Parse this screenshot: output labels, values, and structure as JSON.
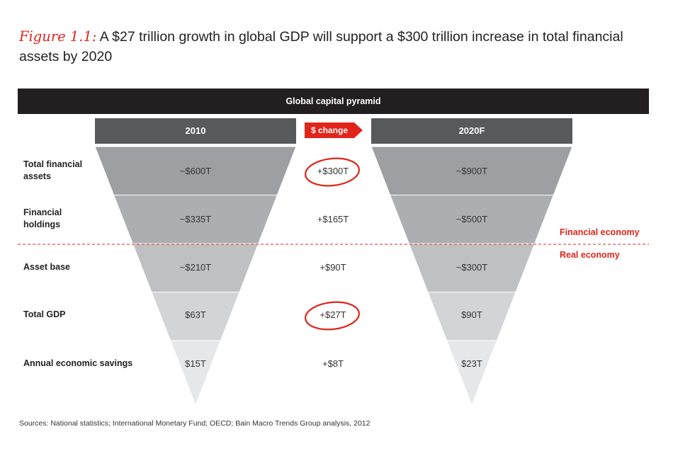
{
  "title": {
    "figure_label": "Figure 1.1:",
    "text": "A $27 trillion growth in global GDP will support a $300 trillion increase in total financial assets by 2020"
  },
  "header_bar": "Global capital pyramid",
  "columns": {
    "left": "2010",
    "middle": "$ change",
    "right": "2020F"
  },
  "rows": [
    {
      "label": "Total financial assets",
      "v2010": "~$600T",
      "change": "+$300T",
      "v2020": "~$900T",
      "circled": true
    },
    {
      "label": "Financial holdings",
      "v2010": "~$335T",
      "change": "+$165T",
      "v2020": "~$500T",
      "circled": false
    },
    {
      "label": "Asset base",
      "v2010": "~$210T",
      "change": "+$90T",
      "v2020": "~$300T",
      "circled": false
    },
    {
      "label": "Total GDP",
      "v2010": "$63T",
      "change": "+$27T",
      "v2020": "$90T",
      "circled": true
    },
    {
      "label": "Annual economic savings",
      "v2010": "$15T",
      "change": "+$8T",
      "v2020": "$23T",
      "circled": false
    }
  ],
  "economy_labels": {
    "financial": "Financial economy",
    "real": "Real economy"
  },
  "source": "Sources: National statistics; International Monetary Fund; OECD; Bain Macro Trends Group analysis, 2012",
  "colors": {
    "accent": "#e1251b",
    "dark": "#231f20",
    "header_gray": "#58595b",
    "tiers": [
      "#9d9fa2",
      "#acaeb1",
      "#bfc0c2",
      "#d3d4d6",
      "#e6e7e8"
    ]
  }
}
